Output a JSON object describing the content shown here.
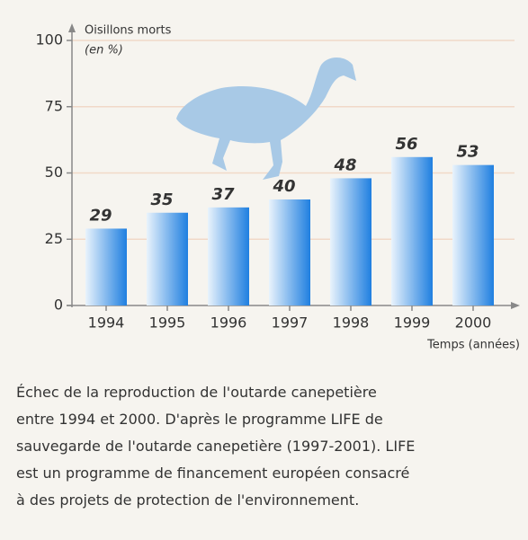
{
  "chart_data": {
    "type": "bar",
    "ylabel": [
      "Oisillons morts",
      "(en %)"
    ],
    "xlabel": "Temps (années)",
    "categories": [
      "1994",
      "1995",
      "1996",
      "1997",
      "1998",
      "1999",
      "2000"
    ],
    "values": [
      29,
      35,
      37,
      40,
      48,
      56,
      53
    ],
    "color": "#1f7fe0",
    "ylim": [
      0,
      100
    ],
    "yticks": [
      0,
      25,
      50,
      75,
      100
    ],
    "grid": true
  },
  "caption": [
    "Échec de la reproduction de l'outarde canepetière",
    "entre 1994 et 2000. D'après le programme LIFE de",
    "sauvegarde de l'outarde canepetière (1997-2001). LIFE",
    "est  un programme de financement européen consacré",
    "à des projets de protection de l'environnement."
  ]
}
